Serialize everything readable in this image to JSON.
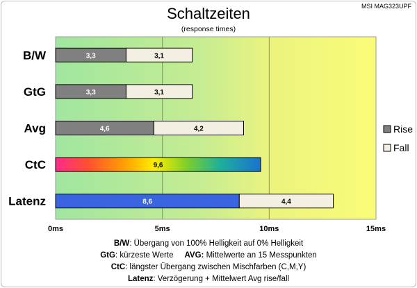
{
  "chart_data": {
    "type": "bar",
    "orientation": "horizontal",
    "stacked": true,
    "title": "Schaltzeiten",
    "subtitle": "(response times)",
    "corner_label": "MSI MAG323UPF",
    "categories": [
      "B/W",
      "GtG",
      "Avg",
      "CtC",
      "Latenz"
    ],
    "series": [
      {
        "name": "Rise",
        "values": [
          3.3,
          3.3,
          4.6,
          9.6,
          8.6
        ],
        "labels": [
          "3,3",
          "3,3",
          "4,6",
          "9,6",
          "8,6"
        ],
        "color": "#808080"
      },
      {
        "name": "Fall",
        "values": [
          3.1,
          3.1,
          4.2,
          0,
          4.4
        ],
        "labels": [
          "3,1",
          "3,1",
          "4,2",
          "",
          "4,4"
        ],
        "color": "#f3efe2"
      }
    ],
    "special_bars": {
      "CtC": "rainbow gradient (magenta-red-orange-yellow-green-blue)",
      "Latenz": "blue (#3a64e0) plus Fall segment"
    },
    "xlim": [
      0,
      15
    ],
    "xticks": [
      "0ms",
      "5ms",
      "10ms",
      "15ms"
    ],
    "legend": {
      "position": "right",
      "entries": [
        "Rise",
        "Fall"
      ]
    },
    "background": "gradient green to yellow",
    "grid": "vertical lines at 5ms and 10ms"
  },
  "notes": {
    "line1_key": "B/W",
    "line1_text": ":  Übergang von 100% Helligkeit auf 0% Helligkeit",
    "line2_key_a": "GtG",
    "line2_text_a": ": kürzeste  Werte",
    "line2_key_b": "AVG:",
    "line2_text_b": " Mittelwerte  an 15 Messpunkten",
    "line3_key": "CtC",
    "line3_text": ": längster Übergang zwischen Mischfarben (C,M,Y)",
    "line4_key": "Latenz",
    "line4_text": ": Verzögerung  + Mittelwert Avg rise/fall"
  },
  "colors": {
    "rise": "#808080",
    "fall": "#f3efe2",
    "latenz": "#3a64e0",
    "bg_left": "#a0e6a0",
    "bg_right": "#f8fa70"
  }
}
